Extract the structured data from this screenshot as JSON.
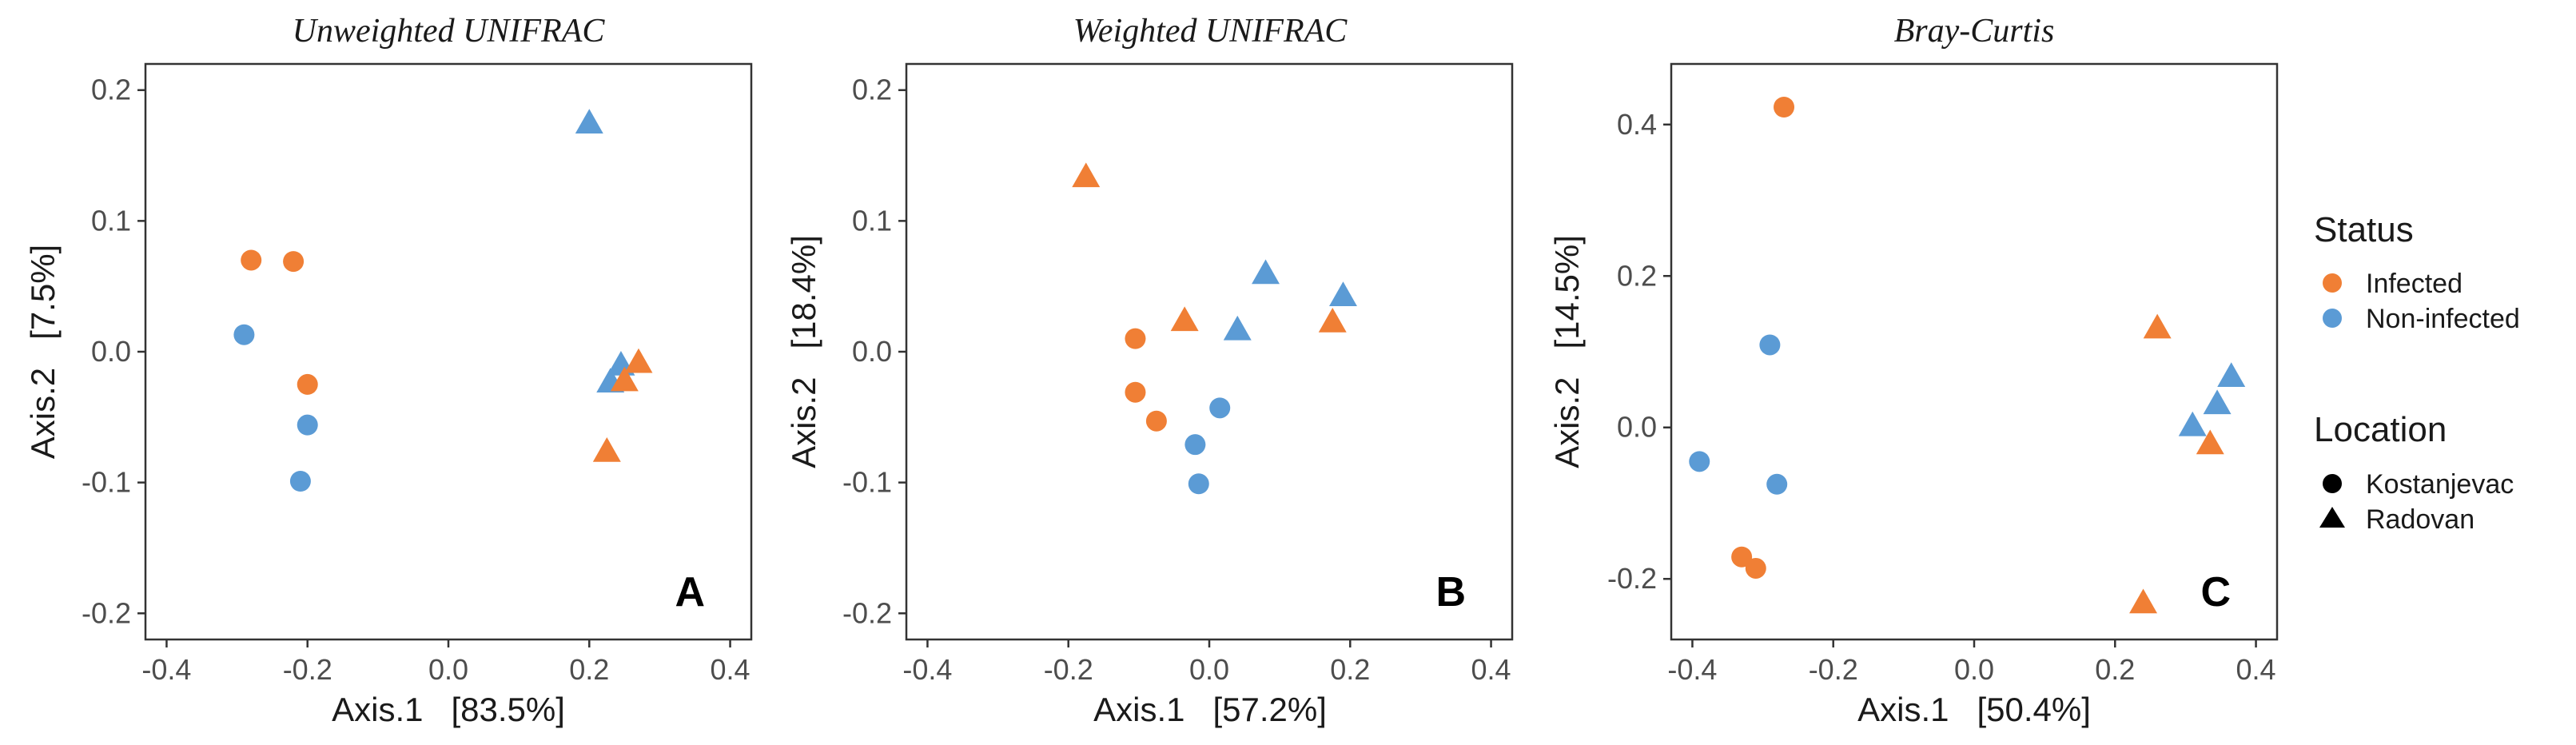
{
  "chart_data": [
    {
      "type": "scatter",
      "title": "Unweighted UNIFRAC",
      "panel_label": "A",
      "xlabel": "Axis.1   [83.5%]",
      "ylabel": "Axis.2   [7.5%]",
      "xlim": [
        -0.43,
        0.43
      ],
      "ylim": [
        -0.22,
        0.22
      ],
      "xticks": [
        -0.4,
        -0.2,
        0.0,
        0.2,
        0.4
      ],
      "xtick_labels": [
        "-0.4",
        "-0.2",
        "0.0",
        "0.2",
        "0.4"
      ],
      "yticks": [
        -0.2,
        -0.1,
        0.0,
        0.1,
        0.2
      ],
      "ytick_labels": [
        "-0.2",
        "-0.1",
        "0.0",
        "0.1",
        "0.2"
      ],
      "points": [
        {
          "x": -0.28,
          "y": 0.07,
          "status": "Infected",
          "location": "Kostanjevac"
        },
        {
          "x": -0.22,
          "y": 0.069,
          "status": "Infected",
          "location": "Kostanjevac"
        },
        {
          "x": -0.2,
          "y": -0.025,
          "status": "Infected",
          "location": "Kostanjevac"
        },
        {
          "x": -0.29,
          "y": 0.013,
          "status": "Non-infected",
          "location": "Kostanjevac"
        },
        {
          "x": -0.2,
          "y": -0.056,
          "status": "Non-infected",
          "location": "Kostanjevac"
        },
        {
          "x": -0.21,
          "y": -0.099,
          "status": "Non-infected",
          "location": "Kostanjevac"
        },
        {
          "x": 0.2,
          "y": 0.174,
          "status": "Non-infected",
          "location": "Radovan"
        },
        {
          "x": 0.245,
          "y": -0.011,
          "status": "Non-infected",
          "location": "Radovan"
        },
        {
          "x": 0.23,
          "y": -0.024,
          "status": "Non-infected",
          "location": "Radovan"
        },
        {
          "x": 0.27,
          "y": -0.009,
          "status": "Infected",
          "location": "Radovan"
        },
        {
          "x": 0.25,
          "y": -0.023,
          "status": "Infected",
          "location": "Radovan"
        },
        {
          "x": 0.225,
          "y": -0.077,
          "status": "Infected",
          "location": "Radovan"
        }
      ]
    },
    {
      "type": "scatter",
      "title": "Weighted UNIFRAC",
      "panel_label": "B",
      "xlabel": "Axis.1   [57.2%]",
      "ylabel": "Axis.2   [18.4%]",
      "xlim": [
        -0.43,
        0.43
      ],
      "ylim": [
        -0.22,
        0.22
      ],
      "xticks": [
        -0.4,
        -0.2,
        0.0,
        0.2,
        0.4
      ],
      "xtick_labels": [
        "-0.4",
        "-0.2",
        "0.0",
        "0.2",
        "0.4"
      ],
      "yticks": [
        -0.2,
        -0.1,
        0.0,
        0.1,
        0.2
      ],
      "ytick_labels": [
        "-0.2",
        "-0.1",
        "0.0",
        "0.1",
        "0.2"
      ],
      "points": [
        {
          "x": -0.175,
          "y": 0.133,
          "status": "Infected",
          "location": "Radovan"
        },
        {
          "x": -0.035,
          "y": 0.023,
          "status": "Infected",
          "location": "Radovan"
        },
        {
          "x": 0.175,
          "y": 0.022,
          "status": "Infected",
          "location": "Radovan"
        },
        {
          "x": 0.08,
          "y": 0.059,
          "status": "Non-infected",
          "location": "Radovan"
        },
        {
          "x": 0.19,
          "y": 0.042,
          "status": "Non-infected",
          "location": "Radovan"
        },
        {
          "x": 0.04,
          "y": 0.016,
          "status": "Non-infected",
          "location": "Radovan"
        },
        {
          "x": -0.105,
          "y": 0.01,
          "status": "Infected",
          "location": "Kostanjevac"
        },
        {
          "x": -0.105,
          "y": -0.031,
          "status": "Infected",
          "location": "Kostanjevac"
        },
        {
          "x": -0.075,
          "y": -0.053,
          "status": "Infected",
          "location": "Kostanjevac"
        },
        {
          "x": 0.015,
          "y": -0.043,
          "status": "Non-infected",
          "location": "Kostanjevac"
        },
        {
          "x": -0.02,
          "y": -0.071,
          "status": "Non-infected",
          "location": "Kostanjevac"
        },
        {
          "x": -0.015,
          "y": -0.101,
          "status": "Non-infected",
          "location": "Kostanjevac"
        }
      ]
    },
    {
      "type": "scatter",
      "title": "Bray-Curtis",
      "panel_label": "C",
      "xlabel": "Axis.1   [50.4%]",
      "ylabel": "Axis.2   [14.5%]",
      "xlim": [
        -0.43,
        0.43
      ],
      "ylim": [
        -0.28,
        0.48
      ],
      "xticks": [
        -0.4,
        -0.2,
        0.0,
        0.2,
        0.4
      ],
      "xtick_labels": [
        "-0.4",
        "-0.2",
        "0.0",
        "0.2",
        "0.4"
      ],
      "yticks": [
        -0.2,
        0.0,
        0.2,
        0.4
      ],
      "ytick_labels": [
        "-0.2",
        "0.0",
        "0.2",
        "0.4"
      ],
      "points": [
        {
          "x": -0.27,
          "y": 0.423,
          "status": "Infected",
          "location": "Kostanjevac"
        },
        {
          "x": -0.33,
          "y": -0.171,
          "status": "Infected",
          "location": "Kostanjevac"
        },
        {
          "x": -0.31,
          "y": -0.186,
          "status": "Infected",
          "location": "Kostanjevac"
        },
        {
          "x": -0.29,
          "y": 0.109,
          "status": "Non-infected",
          "location": "Kostanjevac"
        },
        {
          "x": -0.39,
          "y": -0.045,
          "status": "Non-infected",
          "location": "Kostanjevac"
        },
        {
          "x": -0.28,
          "y": -0.075,
          "status": "Non-infected",
          "location": "Kostanjevac"
        },
        {
          "x": 0.26,
          "y": 0.13,
          "status": "Infected",
          "location": "Radovan"
        },
        {
          "x": 0.335,
          "y": -0.023,
          "status": "Infected",
          "location": "Radovan"
        },
        {
          "x": 0.24,
          "y": -0.233,
          "status": "Infected",
          "location": "Radovan"
        },
        {
          "x": 0.365,
          "y": 0.066,
          "status": "Non-infected",
          "location": "Radovan"
        },
        {
          "x": 0.345,
          "y": 0.03,
          "status": "Non-infected",
          "location": "Radovan"
        },
        {
          "x": 0.31,
          "y": 0.001,
          "status": "Non-infected",
          "location": "Radovan"
        }
      ]
    }
  ],
  "legend": {
    "status_title": "Status",
    "status_items": [
      {
        "label": "Infected",
        "color": "#F07F35"
      },
      {
        "label": "Non-infected",
        "color": "#5B9BD5"
      }
    ],
    "location_title": "Location",
    "location_items": [
      {
        "label": "Kostanjevac",
        "shape": "circle"
      },
      {
        "label": "Radovan",
        "shape": "triangle"
      }
    ]
  },
  "colors": {
    "Infected": "#F07F35",
    "Non-infected": "#5B9BD5",
    "axis": "#333333",
    "tick_text": "#4d4d4d"
  }
}
